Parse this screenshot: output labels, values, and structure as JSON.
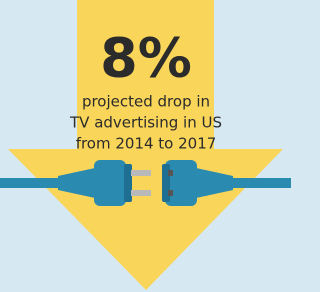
{
  "headline": {
    "figure": "8%",
    "lines": [
      "projected drop in",
      "TV advertising in US",
      "from 2014 to 2017"
    ]
  }
}
